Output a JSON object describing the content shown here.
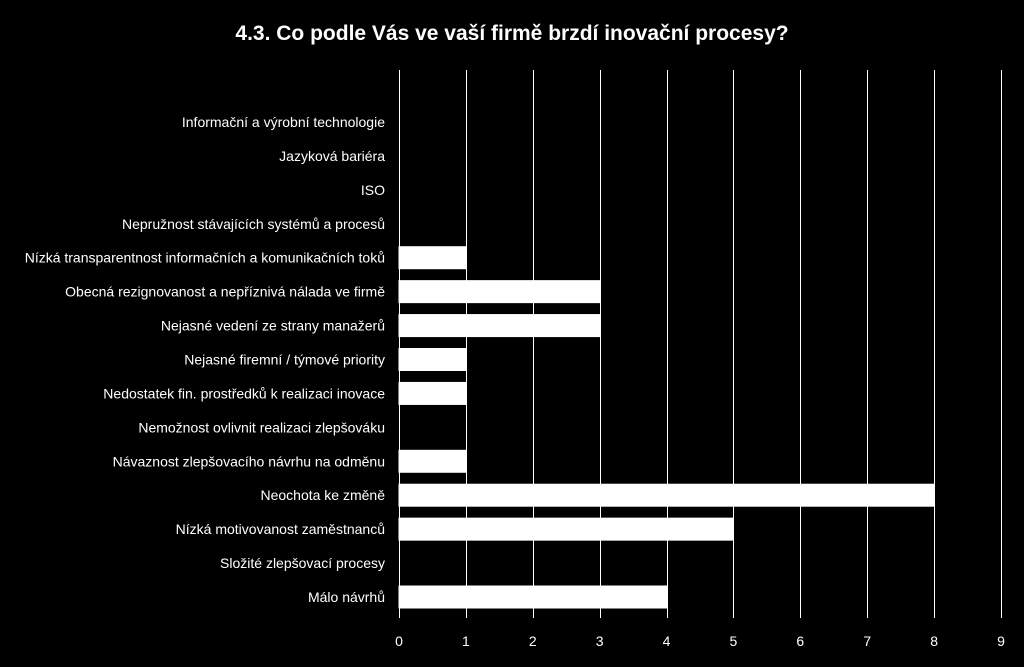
{
  "chart_data": {
    "type": "bar",
    "orientation": "horizontal",
    "title": "4.3. Co podle Vás ve vaší firmě brzdí inovační procesy?",
    "categories": [
      "Informační a výrobní technologie",
      "Jazyková bariéra",
      "ISO",
      "Nepružnost stávajících systémů a procesů",
      "Nízká transparentnost informačních a komunikačních toků",
      "Obecná rezignovanost a nepříznivá nálada ve firmě",
      "Nejasné vedení ze strany manažerů",
      "Nejasné firemní / týmové priority",
      "Nedostatek fin. prostředků k realizaci inovace",
      "Nemožnost ovlivnit realizaci zlepšováku",
      "Návaznost zlepšovacího návrhu na odměnu",
      "Neochota ke změně",
      "Nízká motivovanost zaměstnanců",
      "Složité zlepšovací procesy",
      "Málo návrhů"
    ],
    "values": [
      0,
      0,
      0,
      0,
      1,
      3,
      3,
      1,
      1,
      0,
      1,
      8,
      5,
      0,
      4
    ],
    "xticks": [
      "0",
      "1",
      "2",
      "3",
      "4",
      "5",
      "6",
      "7",
      "8",
      "9"
    ],
    "xlim": [
      0,
      9
    ],
    "grid": "vertical",
    "legend": "none",
    "colors": {
      "background": "#000000",
      "bar": "#ffffff",
      "text": "#ffffff",
      "grid": "#ffffff"
    }
  }
}
